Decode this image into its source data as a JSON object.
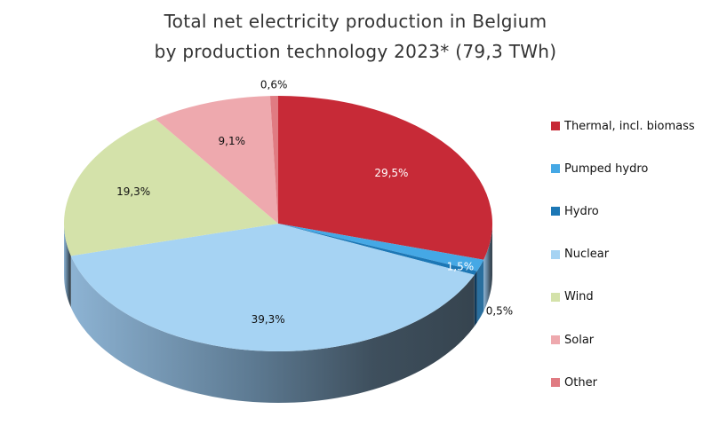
{
  "chart_data": {
    "type": "pie",
    "title": "Total net electricity production in Belgium",
    "subtitle": "by production technology 2023* (79,3 TWh)",
    "three_d": true,
    "legend_position": "right",
    "slices": [
      {
        "name": "Thermal, incl. biomass",
        "value": 29.5,
        "label": "29,5%",
        "color": "#c72a37"
      },
      {
        "name": "Pumped hydro",
        "value": 1.5,
        "label": "1,5%",
        "color": "#45a8e5"
      },
      {
        "name": "Hydro",
        "value": 0.5,
        "label": "0,5%",
        "color": "#1c77b5"
      },
      {
        "name": "Nuclear",
        "value": 39.3,
        "label": "39,3%",
        "color": "#a6d3f3"
      },
      {
        "name": "Wind",
        "value": 19.3,
        "label": "19,3%",
        "color": "#d4e2aa"
      },
      {
        "name": "Solar",
        "value": 9.1,
        "label": "9,1%",
        "color": "#eea9ae"
      },
      {
        "name": "Other",
        "value": 0.6,
        "label": "0,6%",
        "color": "#e07b82"
      }
    ]
  }
}
